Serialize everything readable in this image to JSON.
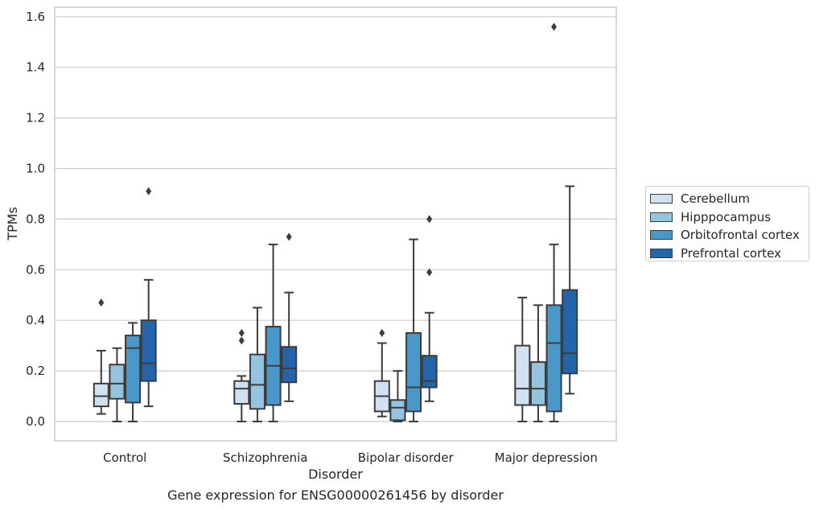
{
  "caption": "Gene expression for ENSG00000261456 by disorder",
  "chart_data": {
    "type": "box",
    "title": "",
    "xlabel": "Disorder",
    "ylabel": "TPMs",
    "ylim": [
      -0.075,
      1.645
    ],
    "yticks": [
      "0.0",
      "0.2",
      "0.4",
      "0.6",
      "0.8",
      "1.0",
      "1.2",
      "1.4",
      "1.6"
    ],
    "grid": "horizontal",
    "legend_position": "right",
    "categories": [
      "Control",
      "Schizophrenia",
      "Bipolar disorder",
      "Major depression"
    ],
    "series": [
      {
        "name": "Cerebellum",
        "color": "#d0e1f2",
        "boxes": [
          {
            "whislo": 0.03,
            "q1": 0.06,
            "med": 0.1,
            "q3": 0.15,
            "whishi": 0.28,
            "fliers": [
              0.47
            ]
          },
          {
            "whislo": 0.0,
            "q1": 0.07,
            "med": 0.13,
            "q3": 0.16,
            "whishi": 0.18,
            "fliers": [
              0.32,
              0.35
            ]
          },
          {
            "whislo": 0.02,
            "q1": 0.04,
            "med": 0.1,
            "q3": 0.16,
            "whishi": 0.31,
            "fliers": [
              0.35
            ]
          },
          {
            "whislo": 0.0,
            "q1": 0.065,
            "med": 0.13,
            "q3": 0.3,
            "whishi": 0.49,
            "fliers": []
          }
        ]
      },
      {
        "name": "Hipppocampus",
        "color": "#94c4df",
        "boxes": [
          {
            "whislo": 0.0,
            "q1": 0.09,
            "med": 0.15,
            "q3": 0.225,
            "whishi": 0.29,
            "fliers": []
          },
          {
            "whislo": 0.0,
            "q1": 0.05,
            "med": 0.145,
            "q3": 0.265,
            "whishi": 0.45,
            "fliers": []
          },
          {
            "whislo": 0.0,
            "q1": 0.005,
            "med": 0.055,
            "q3": 0.085,
            "whishi": 0.2,
            "fliers": []
          },
          {
            "whislo": 0.0,
            "q1": 0.065,
            "med": 0.13,
            "q3": 0.235,
            "whishi": 0.46,
            "fliers": []
          }
        ]
      },
      {
        "name": "Orbitofrontal cortex",
        "color": "#4a98c9",
        "boxes": [
          {
            "whislo": 0.0,
            "q1": 0.075,
            "med": 0.29,
            "q3": 0.34,
            "whishi": 0.39,
            "fliers": []
          },
          {
            "whislo": 0.0,
            "q1": 0.065,
            "med": 0.22,
            "q3": 0.375,
            "whishi": 0.7,
            "fliers": []
          },
          {
            "whislo": 0.0,
            "q1": 0.04,
            "med": 0.135,
            "q3": 0.35,
            "whishi": 0.72,
            "fliers": []
          },
          {
            "whislo": 0.0,
            "q1": 0.04,
            "med": 0.31,
            "q3": 0.46,
            "whishi": 0.7,
            "fliers": [
              1.56
            ]
          }
        ]
      },
      {
        "name": "Prefrontal cortex",
        "color": "#2464a8",
        "boxes": [
          {
            "whislo": 0.06,
            "q1": 0.16,
            "med": 0.23,
            "q3": 0.4,
            "whishi": 0.56,
            "fliers": [
              0.91
            ]
          },
          {
            "whislo": 0.08,
            "q1": 0.155,
            "med": 0.21,
            "q3": 0.295,
            "whishi": 0.51,
            "fliers": [
              0.73
            ]
          },
          {
            "whislo": 0.08,
            "q1": 0.135,
            "med": 0.16,
            "q3": 0.26,
            "whishi": 0.43,
            "fliers": [
              0.59,
              0.8
            ]
          },
          {
            "whislo": 0.11,
            "q1": 0.19,
            "med": 0.27,
            "q3": 0.52,
            "whishi": 0.93,
            "fliers": []
          }
        ]
      }
    ]
  }
}
